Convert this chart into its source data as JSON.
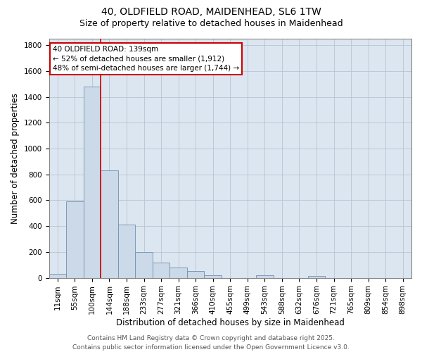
{
  "title_line1": "40, OLDFIELD ROAD, MAIDENHEAD, SL6 1TW",
  "title_line2": "Size of property relative to detached houses in Maidenhead",
  "xlabel": "Distribution of detached houses by size in Maidenhead",
  "ylabel": "Number of detached properties",
  "categories": [
    "11sqm",
    "55sqm",
    "100sqm",
    "144sqm",
    "188sqm",
    "233sqm",
    "277sqm",
    "321sqm",
    "366sqm",
    "410sqm",
    "455sqm",
    "499sqm",
    "543sqm",
    "588sqm",
    "632sqm",
    "676sqm",
    "721sqm",
    "765sqm",
    "809sqm",
    "854sqm",
    "898sqm"
  ],
  "values": [
    30,
    590,
    1480,
    830,
    410,
    200,
    115,
    80,
    50,
    20,
    0,
    0,
    20,
    0,
    0,
    15,
    0,
    0,
    0,
    0,
    0
  ],
  "bar_color": "#ccd9e8",
  "bar_edge_color": "#7090b0",
  "grid_color": "#b8c4d4",
  "background_color": "#dce6f0",
  "vline_color": "#cc0000",
  "vline_position": 2.5,
  "annotation_text": "40 OLDFIELD ROAD: 139sqm\n← 52% of detached houses are smaller (1,912)\n48% of semi-detached houses are larger (1,744) →",
  "annotation_box_color": "#cc0000",
  "ylim": [
    0,
    1850
  ],
  "yticks": [
    0,
    200,
    400,
    600,
    800,
    1000,
    1200,
    1400,
    1600,
    1800
  ],
  "footer_line1": "Contains HM Land Registry data © Crown copyright and database right 2025.",
  "footer_line2": "Contains public sector information licensed under the Open Government Licence v3.0.",
  "title_fontsize": 10,
  "subtitle_fontsize": 9,
  "axis_label_fontsize": 8.5,
  "tick_fontsize": 7.5,
  "annotation_fontsize": 7.5,
  "footer_fontsize": 6.5
}
